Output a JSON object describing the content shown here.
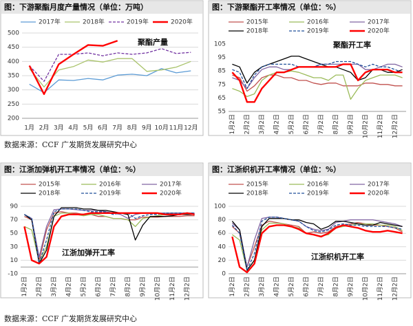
{
  "chart_data": [
    {
      "type": "line",
      "title": "图：下游聚酯月度产量情况（单位：万吨）",
      "annotation": "聚酯产量",
      "categories": [
        "1月",
        "2月",
        "3月",
        "4月",
        "5月",
        "6月",
        "7月",
        "8月",
        "9月",
        "10月",
        "11月",
        "12月"
      ],
      "ylim": [
        200,
        500
      ],
      "yticks": [
        200,
        250,
        300,
        350,
        400,
        450,
        500
      ],
      "grid": true,
      "series": [
        {
          "name": "2017年",
          "color": "#5b9bd5",
          "values": [
            320,
            290,
            335,
            333,
            340,
            335,
            352,
            355,
            350,
            375,
            360,
            367
          ]
        },
        {
          "name": "2018年",
          "color": "#a9c36b",
          "values": [
            375,
            310,
            370,
            382,
            405,
            398,
            410,
            410,
            365,
            370,
            380,
            400
          ]
        },
        {
          "name": "2019年",
          "color": "#7030a0",
          "dashed": true,
          "values": [
            385,
            330,
            425,
            425,
            430,
            420,
            430,
            425,
            430,
            445,
            428,
            432
          ]
        },
        {
          "name": "2020年",
          "color": "#ff0000",
          "bold": true,
          "values": [
            385,
            285,
            390,
            425,
            458,
            455,
            473,
            null,
            null,
            null,
            null,
            null
          ]
        }
      ]
    },
    {
      "type": "line",
      "title": "图：下游聚酯开工率情况（单位：%）",
      "annotation": "聚酯开工率",
      "categories": [
        "1月2日",
        null,
        "2月2日",
        null,
        "3月2日",
        null,
        "4月2日",
        null,
        "5月2日",
        null,
        "6月2日",
        null,
        "7月2日",
        null,
        "8月2日",
        null,
        "9月2日",
        null,
        "10月2日",
        null,
        "11月2日",
        null,
        "12月2日",
        null
      ],
      "ylim": [
        55,
        105
      ],
      "yticks": [
        55,
        65,
        75,
        85,
        95,
        105
      ],
      "grid": false,
      "series": [
        {
          "name": "2015年",
          "color": "#c0504d",
          "values": [
            82,
            80,
            70,
            74,
            80,
            82,
            82,
            80,
            80,
            78,
            78,
            76,
            75,
            76,
            76,
            74,
            74,
            74,
            76,
            76,
            75,
            75,
            74,
            74
          ]
        },
        {
          "name": "2016年",
          "color": "#9bbb59",
          "values": [
            72,
            70,
            66,
            68,
            78,
            82,
            84,
            84,
            85,
            84,
            82,
            80,
            80,
            78,
            82,
            82,
            64,
            72,
            78,
            80,
            82,
            82,
            82,
            80
          ]
        },
        {
          "name": "2017年",
          "color": "#8064a2",
          "values": [
            80,
            78,
            72,
            80,
            86,
            88,
            88,
            86,
            86,
            88,
            88,
            88,
            90,
            90,
            90,
            90,
            90,
            90,
            86,
            86,
            88,
            90,
            90,
            88
          ]
        },
        {
          "name": "2018年",
          "color": "#000000",
          "values": [
            90,
            88,
            76,
            84,
            88,
            90,
            92,
            94,
            96,
            96,
            94,
            92,
            90,
            88,
            88,
            86,
            84,
            78,
            80,
            86,
            86,
            84,
            84,
            86
          ]
        },
        {
          "name": "2019年",
          "color": "#1f4e99",
          "dashed": true,
          "values": [
            86,
            84,
            72,
            82,
            88,
            90,
            90,
            90,
            90,
            88,
            88,
            88,
            90,
            90,
            92,
            92,
            92,
            90,
            88,
            90,
            88,
            88,
            86,
            84
          ]
        },
        {
          "name": "2020年",
          "color": "#ff0000",
          "bold": true,
          "values": [
            84,
            78,
            62,
            62,
            72,
            78,
            84,
            84,
            86,
            88,
            88,
            88,
            88,
            88,
            88,
            90,
            90,
            78,
            84,
            86,
            86,
            86,
            84,
            84
          ]
        }
      ]
    },
    {
      "type": "line",
      "title": "图：江浙加弹机开工率情况（单位：%）",
      "annotation": "江浙加弹开工率",
      "categories": [
        "1月2日",
        null,
        "2月2日",
        null,
        "3月2日",
        null,
        "4月2日",
        null,
        "5月2日",
        null,
        "6月2日",
        null,
        "7月2日",
        null,
        "8月2日",
        null,
        "9月2日",
        null,
        "10月2日",
        null,
        "11月2日",
        null,
        "12月2日",
        null
      ],
      "ylim": [
        -10,
        90
      ],
      "yticks": [
        -10,
        10,
        30,
        50,
        70,
        90
      ],
      "grid": true,
      "series": [
        {
          "name": "2015年",
          "color": "#c0504d",
          "values": [
            75,
            70,
            10,
            55,
            80,
            82,
            80,
            80,
            78,
            78,
            75,
            75,
            72,
            72,
            70,
            70,
            74,
            74,
            74,
            75,
            75,
            75,
            76,
            76
          ]
        },
        {
          "name": "2016年",
          "color": "#9bbb59",
          "values": [
            60,
            55,
            8,
            30,
            75,
            80,
            80,
            78,
            76,
            78,
            78,
            75,
            72,
            72,
            70,
            60,
            72,
            74,
            76,
            78,
            80,
            80,
            78,
            78
          ]
        },
        {
          "name": "2017年",
          "color": "#8064a2",
          "values": [
            78,
            72,
            15,
            60,
            85,
            86,
            86,
            85,
            84,
            84,
            84,
            82,
            80,
            78,
            72,
            78,
            80,
            80,
            80,
            80,
            80,
            80,
            80,
            80
          ]
        },
        {
          "name": "2018年",
          "color": "#000000",
          "values": [
            78,
            70,
            5,
            25,
            75,
            88,
            88,
            88,
            86,
            86,
            84,
            84,
            82,
            80,
            78,
            40,
            62,
            75,
            75,
            75,
            76,
            78,
            78,
            78
          ]
        },
        {
          "name": "2019年",
          "color": "#1f4e99",
          "dashed": true,
          "values": [
            78,
            72,
            6,
            40,
            82,
            86,
            86,
            86,
            84,
            82,
            82,
            82,
            78,
            80,
            80,
            72,
            76,
            78,
            78,
            80,
            80,
            80,
            80,
            80
          ]
        },
        {
          "name": "2020年",
          "color": "#ff0000",
          "bold": true,
          "values": [
            60,
            10,
            5,
            15,
            60,
            75,
            78,
            78,
            78,
            80,
            80,
            80,
            80,
            80,
            80,
            80,
            80,
            80,
            80,
            78,
            78,
            78,
            80,
            78
          ]
        }
      ]
    },
    {
      "type": "line",
      "title": "图：江浙织机开工率情况（单位：%）",
      "annotation": "江浙织机开工率",
      "categories": [
        "1月2日",
        null,
        "2月2日",
        null,
        "3月2日",
        null,
        "4月2日",
        null,
        "5月2日",
        null,
        "6月2日",
        null,
        "7月2日",
        null,
        "8月2日",
        null,
        "9月2日",
        null,
        "10月2日",
        null,
        "11月2日",
        null,
        "12月2日",
        null
      ],
      "ylim": [
        0,
        100
      ],
      "yticks": [
        0,
        20,
        40,
        60,
        80,
        100
      ],
      "grid": true,
      "series": [
        {
          "name": "2015年",
          "color": "#c0504d",
          "values": [
            70,
            60,
            10,
            40,
            72,
            78,
            76,
            74,
            72,
            70,
            60,
            62,
            60,
            62,
            70,
            72,
            74,
            76,
            74,
            72,
            72,
            70,
            68,
            62
          ]
        },
        {
          "name": "2016年",
          "color": "#9bbb59",
          "values": [
            58,
            50,
            5,
            20,
            65,
            75,
            75,
            74,
            70,
            68,
            60,
            58,
            56,
            58,
            68,
            70,
            72,
            74,
            74,
            74,
            72,
            72,
            70,
            64
          ]
        },
        {
          "name": "2017年",
          "color": "#8064a2",
          "values": [
            75,
            65,
            10,
            50,
            82,
            84,
            84,
            82,
            80,
            78,
            70,
            66,
            64,
            66,
            76,
            78,
            80,
            80,
            80,
            80,
            78,
            76,
            74,
            70
          ]
        },
        {
          "name": "2018年",
          "color": "#000000",
          "values": [
            78,
            65,
            5,
            20,
            70,
            82,
            82,
            82,
            80,
            80,
            76,
            74,
            66,
            70,
            78,
            78,
            76,
            74,
            72,
            72,
            76,
            74,
            72,
            70
          ]
        },
        {
          "name": "2019年",
          "color": "#1f4e99",
          "dashed": true,
          "values": [
            72,
            60,
            5,
            30,
            78,
            84,
            84,
            82,
            80,
            78,
            70,
            64,
            62,
            65,
            72,
            74,
            72,
            72,
            70,
            70,
            70,
            70,
            68,
            66
          ]
        },
        {
          "name": "2020年",
          "color": "#ff0000",
          "bold": true,
          "values": [
            55,
            10,
            2,
            15,
            60,
            70,
            72,
            72,
            70,
            66,
            60,
            58,
            55,
            60,
            68,
            72,
            70,
            68,
            64,
            62,
            62,
            64,
            62,
            60
          ]
        }
      ]
    }
  ],
  "sources": [
    "数据来源：CCF 广发期货发展研究中心",
    "数据来源：CCF 广发期货发展研究中心"
  ]
}
